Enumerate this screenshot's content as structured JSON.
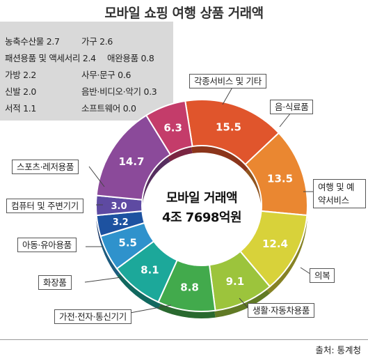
{
  "chart_data": {
    "type": "donut",
    "title": "모바일 쇼핑 여행 상품 거래액",
    "center_label": "모바일 거래액",
    "center_value": "4조 7698억원",
    "unit": "%",
    "slices": [
      {
        "label": "음·식료품",
        "value": 15.5,
        "color": "#e0552c"
      },
      {
        "label": "여행 및 예약서비스",
        "value": 13.5,
        "color": "#ea8731"
      },
      {
        "label": "의복",
        "value": 12.4,
        "color": "#d8d23a"
      },
      {
        "label": "생활·자동차용품",
        "value": 9.1,
        "color": "#9cc43c"
      },
      {
        "label": "가전·전자·통신기기",
        "value": 8.8,
        "color": "#42aa4c"
      },
      {
        "label": "화장품",
        "value": 8.1,
        "color": "#1ca89a"
      },
      {
        "label": "아동·유아용품",
        "value": 5.5,
        "color": "#2f92cc"
      },
      {
        "label": "컴퓨터 및 주변기기",
        "value": 3.2,
        "color": "#1d52a0"
      },
      {
        "label": "스포츠·레저용품",
        "value": 3.0,
        "color": "#5e4aa2"
      },
      {
        "label": "",
        "value": 14.7,
        "color": "#8b4a9a"
      },
      {
        "label": "각종서비스 및 기타",
        "value": 6.3,
        "color": "#c43c6a"
      }
    ],
    "small_categories": [
      {
        "label": "농축수산물",
        "value": "2.7"
      },
      {
        "label": "가구",
        "value": "2.6"
      },
      {
        "label": "패션용품 및 액세서리",
        "value": "2.4"
      },
      {
        "label": "애완용품",
        "value": "0.8"
      },
      {
        "label": "가방",
        "value": "2.2"
      },
      {
        "label": "사무·문구",
        "value": "0.6"
      },
      {
        "label": "신발",
        "value": "2.0"
      },
      {
        "label": "음반·비디오·악기",
        "value": "0.3"
      },
      {
        "label": "서적",
        "value": "1.1"
      },
      {
        "label": "소프트웨어",
        "value": "0.0"
      }
    ],
    "source": "출처: 통계청"
  }
}
